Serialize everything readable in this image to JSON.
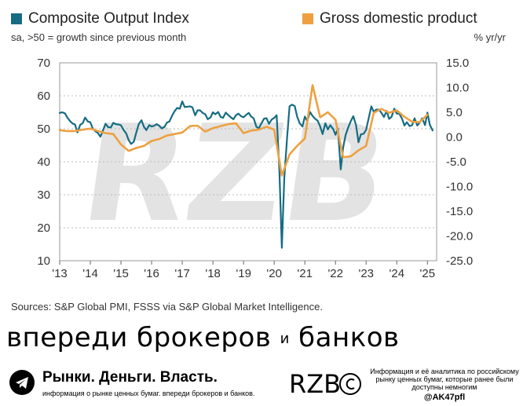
{
  "legend": {
    "left_label": "Composite Output Index",
    "right_label": "Gross domestic product",
    "left_color": "#166c82",
    "right_color": "#eea040"
  },
  "subtitles": {
    "left": "sa, >50 = growth since previous month",
    "right": "% yr/yr"
  },
  "source": "Sources: S&P Global PMI, FSSS via S&P Global Market Intelligence.",
  "watermark": "RZB",
  "slogan": {
    "part1": "впереди брокеров",
    "conj": "и",
    "part2": "банков"
  },
  "footer": {
    "brand": "Рынки. Деньги. Власть.",
    "brand_sub": "информация о рынке ценных бумаг. впереди брокеров и банков.",
    "logo_text": "RZB",
    "info": "Информация и её аналитика по российскому рынку ценных бумаг, которые ранее были доступны немногим",
    "handle": "@AK47pfl"
  },
  "chart_data": {
    "type": "line",
    "x_ticks": [
      "'13",
      "'14",
      "'15",
      "'16",
      "'17",
      "'18",
      "'19",
      "'20",
      "'21",
      "'22",
      "'23",
      "'24",
      "'25"
    ],
    "x_range": [
      2013.0,
      2025.3
    ],
    "left_axis": {
      "ticks": [
        10,
        20,
        30,
        40,
        50,
        60,
        70
      ],
      "range": [
        10,
        70
      ]
    },
    "right_axis": {
      "ticks": [
        "15.0",
        "10.0",
        "5.0",
        "0.0",
        "-5.0",
        "-10.0",
        "-15.0",
        "-20.0",
        "-25.0"
      ],
      "range": [
        -25,
        15
      ]
    },
    "series": [
      {
        "name": "Composite Output Index",
        "axis": "left",
        "color": "#166c82",
        "points": [
          [
            2013.0,
            54.8
          ],
          [
            2013.08,
            55.0
          ],
          [
            2013.17,
            54.7
          ],
          [
            2013.25,
            53.4
          ],
          [
            2013.33,
            52.4
          ],
          [
            2013.42,
            51.6
          ],
          [
            2013.5,
            51.3
          ],
          [
            2013.58,
            48.9
          ],
          [
            2013.67,
            51.2
          ],
          [
            2013.75,
            51.7
          ],
          [
            2013.83,
            53.4
          ],
          [
            2013.92,
            52.2
          ],
          [
            2014.0,
            52.0
          ],
          [
            2014.08,
            50.1
          ],
          [
            2014.17,
            49.2
          ],
          [
            2014.25,
            48.7
          ],
          [
            2014.33,
            47.6
          ],
          [
            2014.42,
            49.7
          ],
          [
            2014.5,
            51.5
          ],
          [
            2014.58,
            50.5
          ],
          [
            2014.67,
            50.4
          ],
          [
            2014.75,
            51.8
          ],
          [
            2014.83,
            51.4
          ],
          [
            2014.92,
            51.3
          ],
          [
            2015.0,
            51.1
          ],
          [
            2015.08,
            49.7
          ],
          [
            2015.17,
            48.6
          ],
          [
            2015.25,
            46.6
          ],
          [
            2015.33,
            45.4
          ],
          [
            2015.42,
            46.1
          ],
          [
            2015.5,
            48.9
          ],
          [
            2015.58,
            51.4
          ],
          [
            2015.67,
            52.6
          ],
          [
            2015.75,
            50.6
          ],
          [
            2015.83,
            49.6
          ],
          [
            2015.92,
            51.1
          ],
          [
            2016.0,
            50.7
          ],
          [
            2016.08,
            50.9
          ],
          [
            2016.17,
            51.4
          ],
          [
            2016.25,
            50.9
          ],
          [
            2016.33,
            50.1
          ],
          [
            2016.42,
            50.6
          ],
          [
            2016.5,
            51.9
          ],
          [
            2016.58,
            52.2
          ],
          [
            2016.67,
            54.0
          ],
          [
            2016.75,
            55.3
          ],
          [
            2016.83,
            56.3
          ],
          [
            2016.92,
            56.1
          ],
          [
            2017.0,
            58.3
          ],
          [
            2017.08,
            56.6
          ],
          [
            2017.17,
            56.7
          ],
          [
            2017.25,
            56.8
          ],
          [
            2017.33,
            56.5
          ],
          [
            2017.42,
            54.1
          ],
          [
            2017.5,
            55.6
          ],
          [
            2017.58,
            55.6
          ],
          [
            2017.67,
            54.8
          ],
          [
            2017.75,
            54.4
          ],
          [
            2017.83,
            52.9
          ],
          [
            2017.92,
            53.4
          ],
          [
            2018.0,
            55.0
          ],
          [
            2018.08,
            54.4
          ],
          [
            2018.17,
            55.1
          ],
          [
            2018.25,
            53.6
          ],
          [
            2018.33,
            53.3
          ],
          [
            2018.42,
            54.9
          ],
          [
            2018.5,
            54.2
          ],
          [
            2018.58,
            53.5
          ],
          [
            2018.67,
            52.9
          ],
          [
            2018.75,
            54.1
          ],
          [
            2018.83,
            54.6
          ],
          [
            2018.92,
            53.8
          ],
          [
            2019.0,
            53.5
          ],
          [
            2019.08,
            54.2
          ],
          [
            2019.17,
            54.8
          ],
          [
            2019.25,
            53.7
          ],
          [
            2019.33,
            53.2
          ],
          [
            2019.42,
            50.6
          ],
          [
            2019.5,
            50.2
          ],
          [
            2019.58,
            51.6
          ],
          [
            2019.67,
            53.1
          ],
          [
            2019.75,
            53.2
          ],
          [
            2019.83,
            51.5
          ],
          [
            2019.92,
            52.8
          ],
          [
            2020.0,
            53.3
          ],
          [
            2020.08,
            54.1
          ],
          [
            2020.17,
            37.2
          ],
          [
            2020.25,
            13.9
          ],
          [
            2020.33,
            35.0
          ],
          [
            2020.42,
            47.3
          ],
          [
            2020.5,
            56.8
          ],
          [
            2020.58,
            57.3
          ],
          [
            2020.67,
            56.9
          ],
          [
            2020.75,
            53.7
          ],
          [
            2020.83,
            51.7
          ],
          [
            2020.92,
            50.7
          ],
          [
            2021.0,
            53.7
          ],
          [
            2021.08,
            52.3
          ],
          [
            2021.17,
            55.1
          ],
          [
            2021.25,
            53.9
          ],
          [
            2021.33,
            53.1
          ],
          [
            2021.42,
            52.4
          ],
          [
            2021.5,
            50.7
          ],
          [
            2021.58,
            48.4
          ],
          [
            2021.67,
            51.7
          ],
          [
            2021.75,
            49.8
          ],
          [
            2021.83,
            51.1
          ],
          [
            2021.92,
            50.0
          ],
          [
            2022.0,
            48.2
          ],
          [
            2022.08,
            50.1
          ],
          [
            2022.17,
            37.7
          ],
          [
            2022.25,
            44.4
          ],
          [
            2022.33,
            48.1
          ],
          [
            2022.42,
            50.5
          ],
          [
            2022.5,
            52.3
          ],
          [
            2022.58,
            53.8
          ],
          [
            2022.67,
            51.1
          ],
          [
            2022.75,
            45.9
          ],
          [
            2022.83,
            48.3
          ],
          [
            2022.92,
            48.5
          ],
          [
            2023.0,
            49.7
          ],
          [
            2023.08,
            53.1
          ],
          [
            2023.17,
            56.8
          ],
          [
            2023.25,
            55.1
          ],
          [
            2023.33,
            55.8
          ],
          [
            2023.42,
            55.8
          ],
          [
            2023.5,
            54.8
          ],
          [
            2023.58,
            53.6
          ],
          [
            2023.67,
            55.4
          ],
          [
            2023.75,
            53.0
          ],
          [
            2023.83,
            53.6
          ],
          [
            2023.92,
            56.1
          ],
          [
            2024.0,
            54.6
          ],
          [
            2024.08,
            54.6
          ],
          [
            2024.17,
            53.1
          ],
          [
            2024.25,
            51.0
          ],
          [
            2024.33,
            52.0
          ],
          [
            2024.42,
            50.8
          ],
          [
            2024.5,
            51.1
          ],
          [
            2024.58,
            53.2
          ],
          [
            2024.67,
            51.0
          ],
          [
            2024.75,
            51.9
          ],
          [
            2024.83,
            53.2
          ],
          [
            2024.92,
            51.1
          ],
          [
            2025.0,
            54.9
          ],
          [
            2025.08,
            51.2
          ],
          [
            2025.17,
            49.5
          ]
        ]
      },
      {
        "name": "Gross domestic product",
        "axis": "right",
        "color": "#eea040",
        "points": [
          [
            2013.0,
            1.4
          ],
          [
            2013.25,
            1.2
          ],
          [
            2013.5,
            1.2
          ],
          [
            2013.75,
            1.5
          ],
          [
            2014.0,
            1.7
          ],
          [
            2014.25,
            1.2
          ],
          [
            2014.5,
            0.8
          ],
          [
            2014.75,
            0.6
          ],
          [
            2015.0,
            -1.5
          ],
          [
            2015.25,
            -2.8
          ],
          [
            2015.5,
            -2.2
          ],
          [
            2015.75,
            -1.8
          ],
          [
            2016.0,
            -0.8
          ],
          [
            2016.25,
            -0.4
          ],
          [
            2016.5,
            0.3
          ],
          [
            2016.75,
            0.6
          ],
          [
            2017.0,
            0.9
          ],
          [
            2017.25,
            2.2
          ],
          [
            2017.5,
            2.3
          ],
          [
            2017.75,
            1.1
          ],
          [
            2018.0,
            1.8
          ],
          [
            2018.25,
            2.2
          ],
          [
            2018.5,
            2.6
          ],
          [
            2018.75,
            2.8
          ],
          [
            2019.0,
            0.8
          ],
          [
            2019.25,
            1.3
          ],
          [
            2019.5,
            1.5
          ],
          [
            2019.75,
            2.1
          ],
          [
            2020.0,
            1.5
          ],
          [
            2020.25,
            -7.8
          ],
          [
            2020.5,
            -3.5
          ],
          [
            2020.75,
            -1.8
          ],
          [
            2021.0,
            -0.3
          ],
          [
            2021.25,
            10.5
          ],
          [
            2021.5,
            4.0
          ],
          [
            2021.75,
            5.0
          ],
          [
            2022.0,
            3.5
          ],
          [
            2022.25,
            -4.1
          ],
          [
            2022.5,
            -3.9
          ],
          [
            2022.75,
            -2.7
          ],
          [
            2023.0,
            -1.8
          ],
          [
            2023.25,
            4.9
          ],
          [
            2023.5,
            5.7
          ],
          [
            2023.75,
            4.9
          ],
          [
            2024.0,
            5.4
          ],
          [
            2024.25,
            4.1
          ],
          [
            2024.5,
            3.1
          ],
          [
            2024.75,
            3.0
          ],
          [
            2025.0,
            4.5
          ]
        ]
      }
    ]
  }
}
